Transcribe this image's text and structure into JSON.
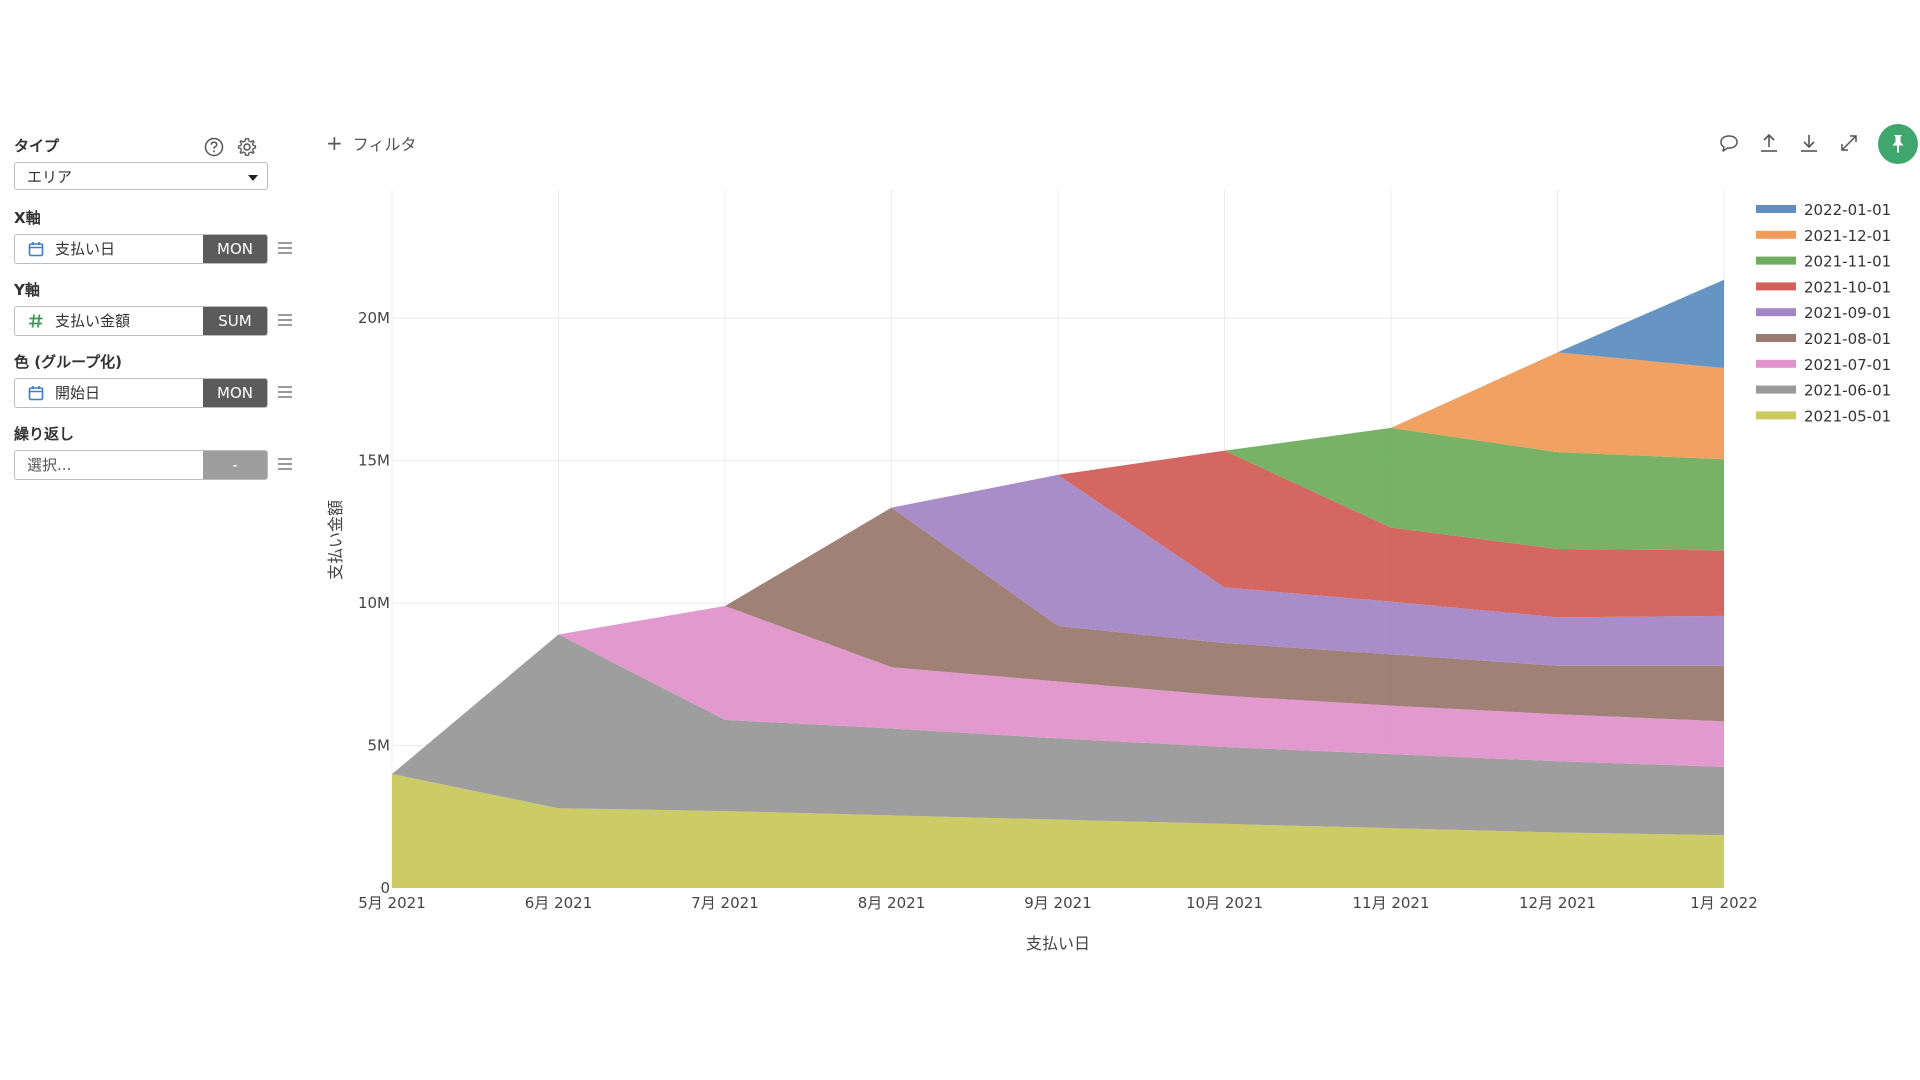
{
  "sidebar": {
    "type": {
      "title": "タイプ",
      "value": "エリア"
    },
    "x_axis": {
      "title": "X軸",
      "field": "支払い日",
      "agg": "MON"
    },
    "y_axis": {
      "title": "Y軸",
      "field": "支払い金額",
      "agg": "SUM"
    },
    "color": {
      "title": "色 (グループ化)",
      "field": "開始日",
      "agg": "MON"
    },
    "repeat": {
      "title": "繰り返し",
      "placeholder": "選択...",
      "agg": "-"
    }
  },
  "toolbar": {
    "filter_label": "フィルタ"
  },
  "icons": {
    "help": "help-icon",
    "settings": "gear-icon",
    "calendar": "calendar-icon",
    "number": "hash-icon",
    "comment": "comment-icon",
    "upload": "upload-icon",
    "download": "download-icon",
    "expand": "expand-icon",
    "pin": "pin-icon"
  },
  "colors": {
    "pin_button": "#3fa66d",
    "agg_button": "#5b5b5b"
  },
  "chart_data": {
    "type": "area",
    "stacked": true,
    "categories": [
      "5月 2021",
      "6月 2021",
      "7月 2021",
      "8月 2021",
      "9月 2021",
      "10月 2021",
      "11月 2021",
      "12月 2021",
      "1月 2022"
    ],
    "xlabel": "支払い日",
    "ylabel": "支払い金額",
    "ylim": [
      0,
      24500000
    ],
    "yticks": [
      0,
      5000000,
      10000000,
      15000000,
      20000000
    ],
    "ytick_labels": [
      "0",
      "5M",
      "10M",
      "15M",
      "20M"
    ],
    "grid": true,
    "legend_position": "right",
    "series": [
      {
        "name": "2021-05-01",
        "color": "#c9c95f",
        "start": 0,
        "values": [
          4000000,
          2800000,
          2700000,
          2550000,
          2400000,
          2250000,
          2100000,
          1950000,
          1850000
        ]
      },
      {
        "name": "2021-06-01",
        "color": "#999999",
        "start": 1,
        "values": [
          null,
          6100000,
          3200000,
          3050000,
          2850000,
          2700000,
          2600000,
          2500000,
          2400000
        ]
      },
      {
        "name": "2021-07-01",
        "color": "#e093cb",
        "start": 2,
        "values": [
          null,
          null,
          4000000,
          2150000,
          2000000,
          1800000,
          1700000,
          1650000,
          1600000
        ]
      },
      {
        "name": "2021-08-01",
        "color": "#9b7a6f",
        "start": 3,
        "values": [
          null,
          null,
          null,
          5600000,
          1950000,
          1850000,
          1800000,
          1700000,
          1950000
        ]
      },
      {
        "name": "2021-09-01",
        "color": "#a387c6",
        "start": 4,
        "values": [
          null,
          null,
          null,
          null,
          5300000,
          1950000,
          1850000,
          1700000,
          1750000
        ]
      },
      {
        "name": "2021-10-01",
        "color": "#d35f5a",
        "start": 5,
        "values": [
          null,
          null,
          null,
          null,
          null,
          4800000,
          2600000,
          2400000,
          2300000
        ]
      },
      {
        "name": "2021-11-01",
        "color": "#70ae5f",
        "start": 6,
        "values": [
          null,
          null,
          null,
          null,
          null,
          null,
          3500000,
          3400000,
          3200000
        ]
      },
      {
        "name": "2021-12-01",
        "color": "#f09d5b",
        "start": 7,
        "values": [
          null,
          null,
          null,
          null,
          null,
          null,
          null,
          3500000,
          3200000
        ]
      },
      {
        "name": "2022-01-01",
        "color": "#5f8fc0",
        "start": 8,
        "values": [
          null,
          null,
          null,
          null,
          null,
          null,
          null,
          null,
          3100000
        ]
      }
    ]
  }
}
